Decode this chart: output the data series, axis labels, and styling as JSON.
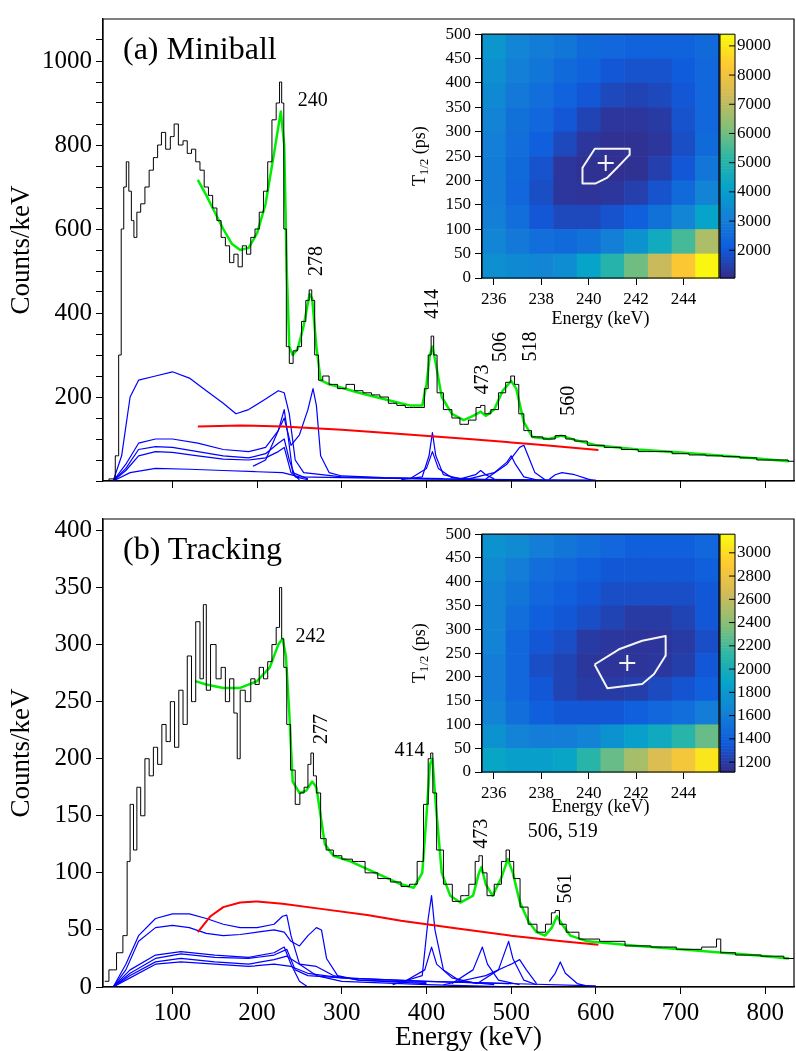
{
  "chart_data": [
    {
      "type": "line",
      "title": "(a) Miniball",
      "ylabel": "Counts/keV",
      "xlim": [
        18,
        834
      ],
      "ylim": [
        0,
        1100
      ],
      "tick_labels": "y",
      "xticks": [
        100,
        200,
        300,
        400,
        500,
        600,
        700,
        800
      ],
      "yticks": [
        {
          "value": 0,
          "label": null
        },
        {
          "value": 50,
          "label": null
        },
        {
          "value": 100,
          "label": null
        },
        {
          "value": 150,
          "label": null
        },
        200,
        {
          "value": 250,
          "label": null
        },
        {
          "value": 300,
          "label": null
        },
        {
          "value": 350,
          "label": null
        },
        400,
        {
          "value": 450,
          "label": null
        },
        {
          "value": 500,
          "label": null
        },
        {
          "value": 550,
          "label": null
        },
        600,
        {
          "value": 650,
          "label": null
        },
        {
          "value": 700,
          "label": null
        },
        {
          "value": 750,
          "label": null
        },
        800,
        {
          "value": 850,
          "label": null
        },
        {
          "value": 900,
          "label": null
        },
        {
          "value": 950,
          "label": null
        },
        1000,
        {
          "value": 1050,
          "label": null
        }
      ],
      "series": [
        {
          "type": "step",
          "color": "#000000",
          "x": [
            20,
            30,
            35,
            38,
            41,
            44,
            47,
            50,
            53,
            56,
            60,
            65,
            70,
            75,
            80,
            85,
            89,
            95,
            100,
            104,
            110,
            115,
            120,
            125,
            130,
            135,
            140,
            145,
            150,
            155,
            160,
            165,
            170,
            175,
            180,
            185,
            190,
            195,
            200,
            205,
            210,
            215,
            220,
            225,
            228,
            230,
            233,
            236,
            240,
            245,
            250,
            255,
            260,
            263,
            266,
            270,
            275,
            280,
            290,
            300,
            310,
            320,
            330,
            340,
            350,
            360,
            370,
            380,
            390,
            395,
            400,
            404,
            407,
            410,
            415,
            425,
            435,
            444,
            455,
            462,
            466,
            472,
            480,
            490,
            497,
            502,
            506,
            512,
            518,
            530,
            545,
            559,
            570,
            580,
            600,
            620,
            640,
            660,
            680,
            700,
            720,
            740,
            760,
            780,
            800,
            820,
            834
          ],
          "values": [
            0,
            5,
            60,
            300,
            600,
            700,
            760,
            690,
            620,
            580,
            640,
            660,
            700,
            740,
            770,
            800,
            830,
            790,
            820,
            850,
            800,
            810,
            780,
            790,
            760,
            740,
            700,
            680,
            650,
            620,
            580,
            560,
            520,
            540,
            510,
            560,
            540,
            580,
            600,
            640,
            690,
            760,
            860,
            900,
            950,
            900,
            600,
            320,
            280,
            310,
            320,
            380,
            430,
            455,
            430,
            300,
            240,
            250,
            230,
            220,
            230,
            215,
            210,
            205,
            200,
            185,
            180,
            175,
            175,
            175,
            220,
            300,
            345,
            300,
            210,
            170,
            150,
            135,
            145,
            175,
            180,
            160,
            170,
            210,
            235,
            250,
            230,
            160,
            120,
            105,
            100,
            108,
            100,
            95,
            85,
            80,
            75,
            70,
            70,
            65,
            62,
            60,
            58,
            55,
            50,
            50,
            47
          ]
        },
        {
          "color": "#00ee00",
          "x": [
            130,
            140,
            150,
            160,
            170,
            180,
            190,
            200,
            210,
            220,
            228,
            232,
            235,
            238,
            242,
            248,
            255,
            262,
            265,
            270,
            275,
            285,
            300,
            320,
            340,
            360,
            380,
            395,
            400,
            404,
            407,
            411,
            418,
            430,
            444,
            455,
            464,
            470,
            480,
            490,
            500,
            506,
            515,
            525,
            545,
            559,
            575,
            600,
            650,
            700,
            750,
            800,
            828
          ],
          "values": [
            717,
            680,
            640,
            600,
            565,
            550,
            555,
            590,
            660,
            780,
            880,
            800,
            500,
            320,
            300,
            315,
            370,
            445,
            435,
            320,
            240,
            230,
            222,
            210,
            200,
            190,
            180,
            180,
            230,
            300,
            320,
            280,
            200,
            160,
            145,
            155,
            165,
            155,
            170,
            215,
            238,
            220,
            140,
            105,
            100,
            108,
            98,
            85,
            75,
            68,
            60,
            52,
            47
          ]
        },
        {
          "type": "line",
          "color": "#ff0000",
          "x": [
            130,
            180,
            230,
            300,
            370,
            450,
            530,
            603
          ],
          "values": [
            130,
            132,
            130,
            122,
            112,
            100,
            87,
            74
          ]
        },
        {
          "type": "line",
          "color": "#0000ff",
          "x": [
            30,
            40,
            50,
            60,
            80,
            100,
            120,
            140,
            160,
            175,
            190,
            210,
            225,
            232,
            238,
            245,
            255,
            300,
            400,
            600
          ],
          "values": [
            0,
            60,
            200,
            240,
            250,
            260,
            245,
            215,
            185,
            160,
            170,
            195,
            215,
            210,
            160,
            50,
            20,
            10,
            5,
            0
          ]
        },
        {
          "color": "#0000ff",
          "x": [
            195,
            210,
            225,
            232,
            240,
            250,
            260,
            266,
            270,
            275,
            285,
            300,
            350,
            420
          ],
          "values": [
            35,
            50,
            120,
            150,
            85,
            110,
            170,
            220,
            180,
            60,
            20,
            12,
            8,
            6
          ]
        },
        {
          "type": "line",
          "color": "#0000ff",
          "x": [
            30,
            45,
            60,
            80,
            100,
            130,
            160,
            190,
            210,
            225,
            232,
            237,
            242,
            260
          ],
          "values": [
            0,
            40,
            90,
            100,
            100,
            90,
            75,
            70,
            80,
            120,
            170,
            100,
            20,
            5
          ]
        },
        {
          "type": "line",
          "color": "#0000ff",
          "x": [
            30,
            45,
            60,
            80,
            100,
            130,
            160,
            190,
            210,
            225,
            232,
            238,
            245,
            260
          ],
          "values": [
            0,
            30,
            75,
            82,
            80,
            70,
            60,
            55,
            65,
            90,
            100,
            50,
            10,
            3
          ]
        },
        {
          "type": "line",
          "color": "#0000ff",
          "x": [
            30,
            45,
            60,
            80,
            100,
            130,
            160,
            190,
            210,
            225,
            232,
            240,
            250
          ],
          "values": [
            0,
            25,
            60,
            70,
            68,
            60,
            52,
            50,
            55,
            70,
            80,
            20,
            3
          ]
        },
        {
          "color": "#0000ff",
          "x": [
            30,
            50,
            80,
            120,
            160,
            200,
            230,
            250,
            300,
            400,
            600
          ],
          "values": [
            0,
            20,
            30,
            28,
            25,
            22,
            20,
            10,
            8,
            5,
            2
          ]
        },
        {
          "type": "line",
          "color": "#0000ff",
          "x": [
            370,
            395,
            403,
            407,
            411,
            420,
            440,
            480
          ],
          "values": [
            3,
            10,
            60,
            115,
            60,
            15,
            5,
            2
          ]
        },
        {
          "type": "line",
          "color": "#0000ff",
          "x": [
            380,
            400,
            407,
            414,
            430,
            460
          ],
          "values": [
            5,
            30,
            70,
            30,
            8,
            3
          ]
        },
        {
          "type": "line",
          "color": "#0000ff",
          "x": [
            440,
            458,
            464,
            470,
            480
          ],
          "values": [
            5,
            15,
            25,
            15,
            5
          ]
        },
        {
          "type": "line",
          "color": "#0000ff",
          "x": [
            450,
            480,
            495,
            500,
            505,
            515,
            530
          ],
          "values": [
            5,
            20,
            45,
            60,
            40,
            10,
            3
          ]
        },
        {
          "type": "line",
          "color": "#0000ff",
          "x": [
            470,
            495,
            510,
            515,
            520,
            528,
            540
          ],
          "values": [
            5,
            40,
            80,
            85,
            60,
            20,
            3
          ]
        },
        {
          "color": "#0000ff",
          "x": [
            545,
            552,
            560,
            575,
            590,
            600
          ],
          "values": [
            4,
            15,
            20,
            15,
            5,
            0
          ]
        }
      ],
      "annotations": [
        {
          "text": "240",
          "x": 228,
          "y": 950
        },
        {
          "text": "278",
          "x": 263,
          "y": 455
        },
        {
          "text": "414",
          "x": 407,
          "y": 345
        },
        {
          "text": "473",
          "x": 466,
          "y": 180
        },
        {
          "text": "506",
          "x": 502,
          "y": 250
        },
        {
          "text": "518",
          "x": 506,
          "y": 230
        },
        {
          "text": "560",
          "x": 559,
          "y": 108
        }
      ]
    },
    {
      "type": "heatmap",
      "xlabel": "Energy (keV)",
      "ylabel": "T$_{1/2}$ (ps)",
      "xlim": [
        235.5,
        245.5
      ],
      "ylim": [
        0,
        500
      ],
      "xticks": [
        236,
        238,
        240,
        242,
        244
      ],
      "yticks": [
        0,
        50,
        100,
        150,
        200,
        250,
        300,
        350,
        400,
        450,
        500
      ],
      "clim": [
        1050,
        9400
      ],
      "cticks": [
        2000,
        3000,
        4000,
        5000,
        6000,
        7000,
        8000,
        9000
      ],
      "cells": [
        [
          3800,
          3300,
          3000,
          2800,
          2500,
          2400,
          2300,
          2300,
          2300,
          2500
        ],
        [
          3600,
          3100,
          2800,
          2500,
          2300,
          2000,
          1900,
          1900,
          2100,
          2400
        ],
        [
          3400,
          2900,
          2600,
          2300,
          2000,
          1700,
          1600,
          1700,
          2000,
          2400
        ],
        [
          3200,
          2700,
          2400,
          2000,
          1600,
          1300,
          1300,
          1400,
          1900,
          2400
        ],
        [
          3100,
          2600,
          2200,
          1700,
          1300,
          1200,
          1200,
          1300,
          1800,
          2500
        ],
        [
          3000,
          2500,
          1900,
          1300,
          1200,
          1150,
          1200,
          1500,
          2000,
          2800
        ],
        [
          3000,
          2400,
          1800,
          1300,
          1250,
          1300,
          1500,
          1900,
          2500,
          3200
        ],
        [
          3100,
          2600,
          2000,
          1700,
          1700,
          1900,
          2200,
          2700,
          3300,
          4200
        ],
        [
          3300,
          2900,
          2600,
          2500,
          2700,
          3100,
          3700,
          4500,
          5500,
          6800
        ],
        [
          3600,
          3400,
          3300,
          3500,
          4200,
          5000,
          6000,
          7200,
          8300,
          9300
        ]
      ],
      "series": [
        {
          "type": "line",
          "color": "#f4f4f4",
          "x": [
            239.74,
            240.26,
            241.73,
            241.73
          ],
          "values": [
            226,
            265,
            265,
            253
          ]
        },
        {
          "type": "line",
          "color": "#f4f4f4",
          "x": [
            239.74,
            239.74,
            240.3,
            240.79,
            241.2,
            241.73
          ],
          "values": [
            226,
            194,
            194,
            206,
            226,
            253
          ]
        },
        {
          "type": "scatter",
          "marker": "cross",
          "color": "#f4f4f4",
          "x": [
            240.72
          ],
          "values": [
            236
          ]
        }
      ]
    },
    {
      "type": "line",
      "title": "(b) Tracking",
      "xlabel": "Energy (keV)",
      "ylabel": "Counts/keV",
      "xlim": [
        18,
        834
      ],
      "ylim": [
        0,
        410
      ],
      "xticks": [
        100,
        200,
        300,
        400,
        500,
        600,
        700,
        800
      ],
      "yticks": [
        0,
        50,
        100,
        150,
        200,
        250,
        300,
        350,
        400
      ],
      "series": [
        {
          "type": "step",
          "color": "#000000",
          "x": [
            20,
            30,
            38,
            45,
            48,
            52,
            56,
            60,
            65,
            70,
            75,
            80,
            85,
            90,
            95,
            100,
            105,
            110,
            115,
            120,
            125,
            130,
            135,
            138,
            142,
            148,
            155,
            160,
            165,
            170,
            175,
            178,
            182,
            190,
            195,
            200,
            205,
            210,
            215,
            220,
            225,
            228,
            230,
            233,
            237,
            242,
            248,
            253,
            258,
            262,
            265,
            268,
            272,
            278,
            285,
            295,
            305,
            320,
            335,
            350,
            365,
            375,
            385,
            393,
            400,
            404,
            406,
            409,
            415,
            425,
            436,
            445,
            455,
            460,
            464,
            468,
            475,
            485,
            492,
            496,
            500,
            506,
            515,
            525,
            536,
            545,
            550,
            554,
            560,
            570,
            590,
            619,
            650,
            680,
            710,
            740,
            745,
            750,
            780,
            810,
            834
          ],
          "values": [
            5,
            15,
            30,
            45,
            110,
            160,
            120,
            175,
            150,
            200,
            185,
            210,
            195,
            230,
            215,
            250,
            210,
            260,
            230,
            290,
            250,
            320,
            270,
            335,
            260,
            300,
            270,
            280,
            250,
            270,
            240,
            200,
            260,
            250,
            270,
            265,
            280,
            270,
            285,
            300,
            315,
            350,
            305,
            280,
            230,
            190,
            160,
            170,
            175,
            195,
            205,
            185,
            170,
            130,
            120,
            115,
            112,
            110,
            100,
            95,
            92,
            88,
            90,
            110,
            160,
            200,
            205,
            170,
            120,
            90,
            75,
            80,
            90,
            110,
            115,
            100,
            80,
            90,
            110,
            120,
            110,
            95,
            70,
            55,
            48,
            55,
            65,
            67,
            55,
            48,
            42,
            40,
            36,
            35,
            33,
            35,
            42,
            30,
            28,
            27,
            25
          ]
        },
        {
          "color": "#00ee00",
          "x": [
            127,
            140,
            160,
            180,
            200,
            215,
            225,
            230,
            234,
            238,
            242,
            250,
            258,
            265,
            270,
            275,
            280,
            290,
            310,
            340,
            370,
            385,
            395,
            400,
            404,
            407,
            411,
            418,
            428,
            440,
            455,
            462,
            465,
            470,
            478,
            488,
            496,
            502,
            510,
            520,
            530,
            540,
            548,
            554,
            560,
            570,
            590,
            650,
            700,
            750,
            800,
            828
          ],
          "values": [
            268,
            265,
            262,
            262,
            268,
            280,
            300,
            305,
            290,
            240,
            180,
            170,
            172,
            180,
            175,
            150,
            125,
            115,
            110,
            100,
            90,
            87,
            100,
            150,
            195,
            200,
            160,
            100,
            80,
            74,
            80,
            100,
            105,
            90,
            80,
            95,
            112,
            100,
            75,
            58,
            48,
            45,
            52,
            62,
            55,
            45,
            40,
            36,
            33,
            30,
            27,
            25
          ]
        },
        {
          "type": "line",
          "color": "#ff0000",
          "x": [
            130,
            145,
            160,
            180,
            200,
            230,
            280,
            330,
            370,
            430,
            500,
            560,
            603
          ],
          "values": [
            48,
            62,
            70,
            74,
            75,
            73,
            68,
            63,
            58,
            52,
            45,
            40,
            37
          ]
        },
        {
          "type": "line",
          "color": "#0000ff",
          "x": [
            30,
            45,
            60,
            80,
            100,
            120,
            140,
            160,
            180,
            200,
            220,
            230,
            235,
            240,
            250,
            270,
            300,
            400,
            500
          ],
          "values": [
            0,
            20,
            45,
            60,
            64,
            64,
            60,
            55,
            52,
            52,
            55,
            62,
            63,
            45,
            20,
            10,
            5,
            2,
            0
          ]
        },
        {
          "type": "line",
          "color": "#0000ff",
          "x": [
            30,
            45,
            60,
            80,
            100,
            120,
            140,
            160,
            180,
            200,
            220,
            232,
            240,
            250,
            260,
            270,
            276,
            282,
            295,
            320,
            400
          ],
          "values": [
            0,
            15,
            40,
            52,
            54,
            52,
            47,
            45,
            46,
            48,
            50,
            48,
            40,
            36,
            45,
            52,
            50,
            25,
            10,
            6,
            3
          ]
        },
        {
          "type": "line",
          "color": "#0000ff",
          "x": [
            30,
            50,
            80,
            110,
            150,
            190,
            220,
            232,
            240,
            250,
            260
          ],
          "values": [
            0,
            15,
            28,
            31,
            28,
            26,
            30,
            35,
            20,
            5,
            0
          ]
        },
        {
          "type": "line",
          "color": "#0000ff",
          "x": [
            30,
            50,
            80,
            110,
            150,
            190,
            220,
            235,
            245,
            260,
            300,
            400,
            500
          ],
          "values": [
            0,
            12,
            25,
            29,
            26,
            25,
            28,
            33,
            15,
            10,
            8,
            5,
            3
          ]
        },
        {
          "type": "line",
          "color": "#0000ff",
          "x": [
            30,
            50,
            80,
            110,
            150,
            190,
            220,
            235,
            250,
            270,
            290,
            320,
            400
          ],
          "values": [
            0,
            10,
            22,
            25,
            22,
            20,
            24,
            27,
            20,
            18,
            10,
            6,
            4
          ]
        },
        {
          "type": "line",
          "color": "#0000ff",
          "x": [
            30,
            50,
            80,
            110,
            150,
            190,
            220,
            240,
            260,
            300,
            400,
            600
          ],
          "values": [
            0,
            8,
            20,
            22,
            20,
            18,
            20,
            18,
            12,
            8,
            5,
            1
          ]
        },
        {
          "type": "line",
          "color": "#0000ff",
          "x": [
            360,
            395,
            402,
            406,
            410,
            420,
            440,
            480
          ],
          "values": [
            2,
            10,
            60,
            80,
            50,
            15,
            5,
            2
          ]
        },
        {
          "type": "line",
          "color": "#0000ff",
          "x": [
            370,
            398,
            406,
            412,
            430,
            460
          ],
          "values": [
            3,
            15,
            35,
            20,
            8,
            3
          ]
        },
        {
          "type": "line",
          "color": "#0000ff",
          "x": [
            430,
            455,
            466,
            472,
            485,
            510
          ],
          "values": [
            3,
            15,
            35,
            20,
            6,
            2
          ]
        },
        {
          "type": "line",
          "color": "#0000ff",
          "x": [
            460,
            485,
            497,
            502,
            515,
            530
          ],
          "values": [
            3,
            15,
            40,
            25,
            6,
            2
          ]
        },
        {
          "type": "line",
          "color": "#0000ff",
          "x": [
            420,
            470,
            500,
            510,
            518,
            530
          ],
          "values": [
            2,
            10,
            20,
            24,
            15,
            3
          ]
        },
        {
          "color": "#0000ff",
          "x": [
            545,
            552,
            558,
            564,
            578,
            595
          ],
          "values": [
            5,
            12,
            22,
            12,
            3,
            0
          ]
        }
      ],
      "annotations": [
        {
          "text": "242",
          "x": 230,
          "y": 305
        },
        {
          "text": "277",
          "x": 265,
          "y": 205
        },
        {
          "text": "414",
          "x": 406,
          "y": 205
        },
        {
          "text": "473",
          "x": 464,
          "y": 115
        },
        {
          "text": "506, 519",
          "x": 496,
          "y": 120
        },
        {
          "text": "561",
          "x": 554,
          "y": 67
        }
      ]
    },
    {
      "type": "heatmap",
      "xlabel": "Energy (keV)",
      "ylabel": "T$_{1/2}$ (ps)",
      "xlim": [
        235.5,
        245.5
      ],
      "ylim": [
        0,
        500
      ],
      "xticks": [
        236,
        238,
        240,
        242,
        244
      ],
      "yticks": [
        0,
        50,
        100,
        150,
        200,
        250,
        300,
        350,
        400,
        450,
        500
      ],
      "clim": [
        1115,
        3160
      ],
      "cticks": [
        1200,
        1400,
        1600,
        1800,
        2000,
        2200,
        2400,
        2600,
        2800,
        3000
      ],
      "cells": [
        [
          1750,
          1700,
          1600,
          1550,
          1500,
          1450,
          1400,
          1400,
          1400,
          1450
        ],
        [
          1700,
          1600,
          1500,
          1450,
          1400,
          1350,
          1350,
          1350,
          1350,
          1400
        ],
        [
          1650,
          1550,
          1450,
          1400,
          1350,
          1300,
          1300,
          1300,
          1300,
          1350
        ],
        [
          1650,
          1500,
          1400,
          1350,
          1300,
          1250,
          1200,
          1200,
          1250,
          1350
        ],
        [
          1650,
          1450,
          1350,
          1300,
          1200,
          1180,
          1170,
          1170,
          1200,
          1300
        ],
        [
          1600,
          1450,
          1300,
          1250,
          1180,
          1170,
          1170,
          1180,
          1220,
          1350
        ],
        [
          1600,
          1450,
          1350,
          1250,
          1200,
          1200,
          1220,
          1280,
          1330,
          1400
        ],
        [
          1650,
          1500,
          1400,
          1350,
          1350,
          1350,
          1400,
          1450,
          1500,
          1600
        ],
        [
          1750,
          1650,
          1600,
          1600,
          1650,
          1750,
          1850,
          1950,
          2100,
          2300
        ],
        [
          1900,
          1850,
          1850,
          1900,
          2100,
          2300,
          2500,
          2700,
          2850,
          3050
        ]
      ],
      "series": [
        {
          "type": "line",
          "color": "#f4f4f4",
          "x": [
            240.25,
            241.28,
            242.26,
            243.25,
            243.25
          ],
          "values": [
            226,
            258,
            276,
            286,
            245
          ]
        },
        {
          "type": "line",
          "color": "#f4f4f4",
          "x": [
            240.25,
            240.79,
            242.26,
            242.76,
            243.25
          ],
          "values": [
            226,
            176,
            185,
            206,
            245
          ]
        },
        {
          "type": "scatter",
          "marker": "cross",
          "color": "#f4f4f4",
          "x": [
            241.63
          ],
          "values": [
            229
          ]
        }
      ]
    }
  ]
}
